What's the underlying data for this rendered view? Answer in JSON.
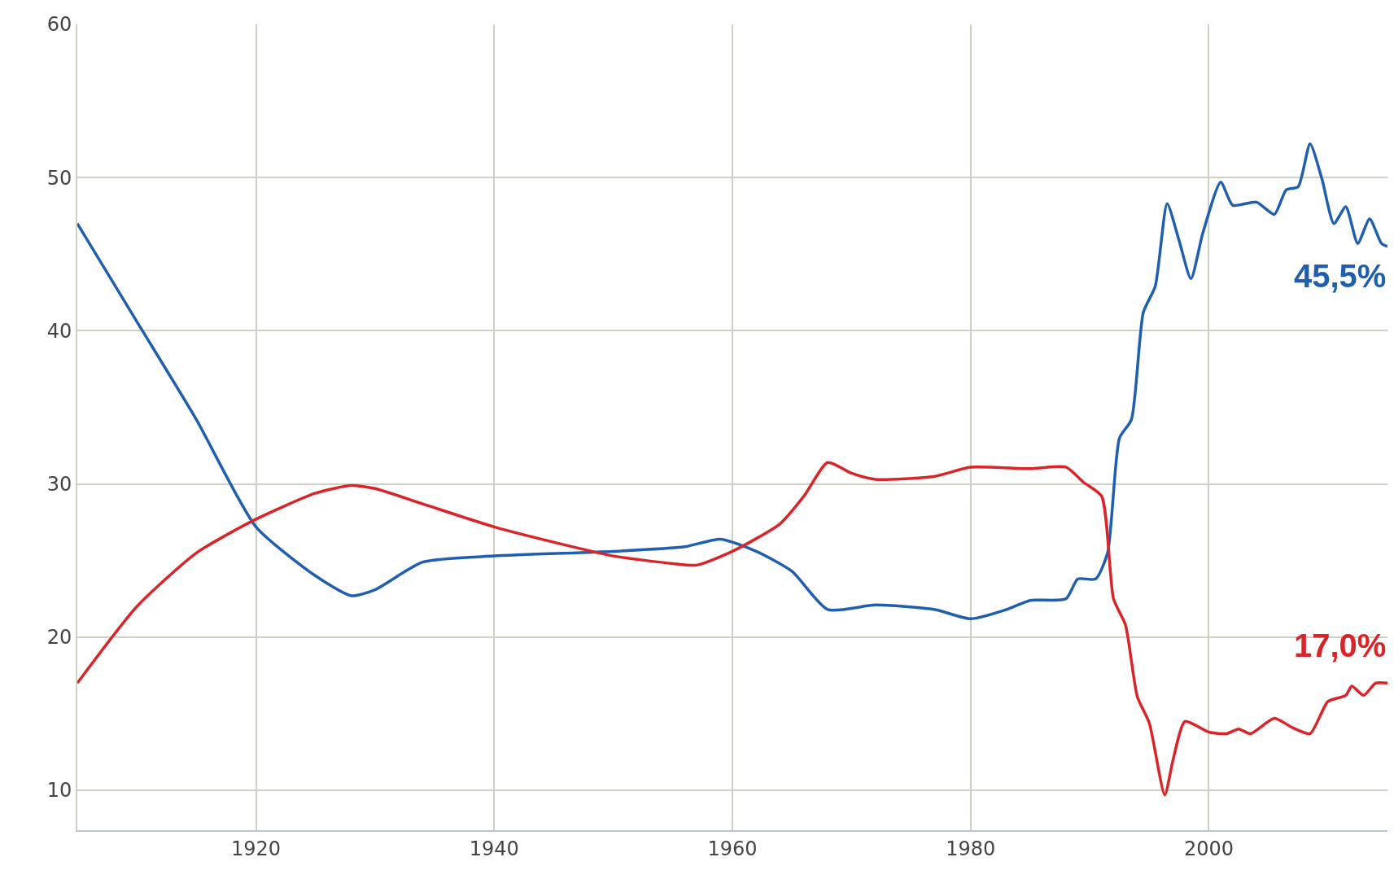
{
  "chart_data": {
    "type": "line",
    "xlim": [
      1905,
      2015
    ],
    "ylim": [
      7.4,
      60
    ],
    "xticks": [
      1920,
      1940,
      1960,
      1980,
      2000
    ],
    "yticks": [
      10,
      20,
      30,
      40,
      50,
      60
    ],
    "grid": true,
    "legend": false,
    "marker": "none",
    "line_style": "solid",
    "series": [
      {
        "color": "#1f5fad",
        "x": [
          1905,
          1910,
          1915,
          1920,
          1925,
          1928,
          1930,
          1934,
          1940,
          1950,
          1956,
          1959,
          1962,
          1965,
          1968,
          1972,
          1977,
          1980,
          1983,
          1985,
          1988,
          1989,
          1990.5,
          1991.5,
          1992.5,
          1993.5,
          1994.5,
          1995.5,
          1996.5,
          1997.5,
          1998.5,
          1999.5,
          2001,
          2002,
          2004,
          2005.5,
          2006.5,
          2007.5,
          2008.5,
          2009.5,
          2010.5,
          2011.5,
          2012.5,
          2013.5,
          2014.5,
          2015
        ],
        "values": [
          47.0,
          40.6,
          34.2,
          27.2,
          24.0,
          22.7,
          23.1,
          24.9,
          25.3,
          25.6,
          25.9,
          26.4,
          25.6,
          24.3,
          21.8,
          22.1,
          21.8,
          21.2,
          21.8,
          22.4,
          22.5,
          23.8,
          23.8,
          25.5,
          33.0,
          34.2,
          41.2,
          42.9,
          48.3,
          45.9,
          43.4,
          46.4,
          49.7,
          48.2,
          48.4,
          47.6,
          49.2,
          49.4,
          52.2,
          49.9,
          47.0,
          48.1,
          45.7,
          47.3,
          45.7,
          45.5
        ]
      },
      {
        "color": "#d9252a",
        "x": [
          1905,
          1910,
          1915,
          1920,
          1925,
          1928,
          1930,
          1934,
          1940,
          1945,
          1950,
          1955,
          1957,
          1960,
          1964,
          1966,
          1968,
          1970,
          1972,
          1977,
          1980,
          1985,
          1988,
          1989.5,
          1991,
          1992,
          1993,
          1994,
          1995,
          1996.3,
          1997,
          1998,
          2000,
          2001.5,
          2002.5,
          2003.5,
          2005.5,
          2007,
          2008.5,
          2010,
          2011.5,
          2012,
          2013,
          2014,
          2015
        ],
        "values": [
          17.0,
          22.0,
          25.5,
          27.7,
          29.4,
          29.9,
          29.7,
          28.7,
          27.2,
          26.2,
          25.3,
          24.8,
          24.7,
          25.6,
          27.4,
          29.2,
          31.4,
          30.7,
          30.3,
          30.5,
          31.1,
          31.0,
          31.1,
          30.1,
          29.2,
          22.5,
          20.8,
          16.1,
          14.4,
          9.7,
          12.0,
          14.5,
          13.8,
          13.7,
          14.0,
          13.7,
          14.7,
          14.1,
          13.7,
          15.8,
          16.2,
          16.8,
          16.2,
          17.0,
          17.0
        ]
      }
    ],
    "annotations": [
      {
        "text": "45,5%",
        "x": 2015,
        "y": 45.5
      },
      {
        "text": "17,0%",
        "x": 2015,
        "y": 17.0
      }
    ]
  }
}
